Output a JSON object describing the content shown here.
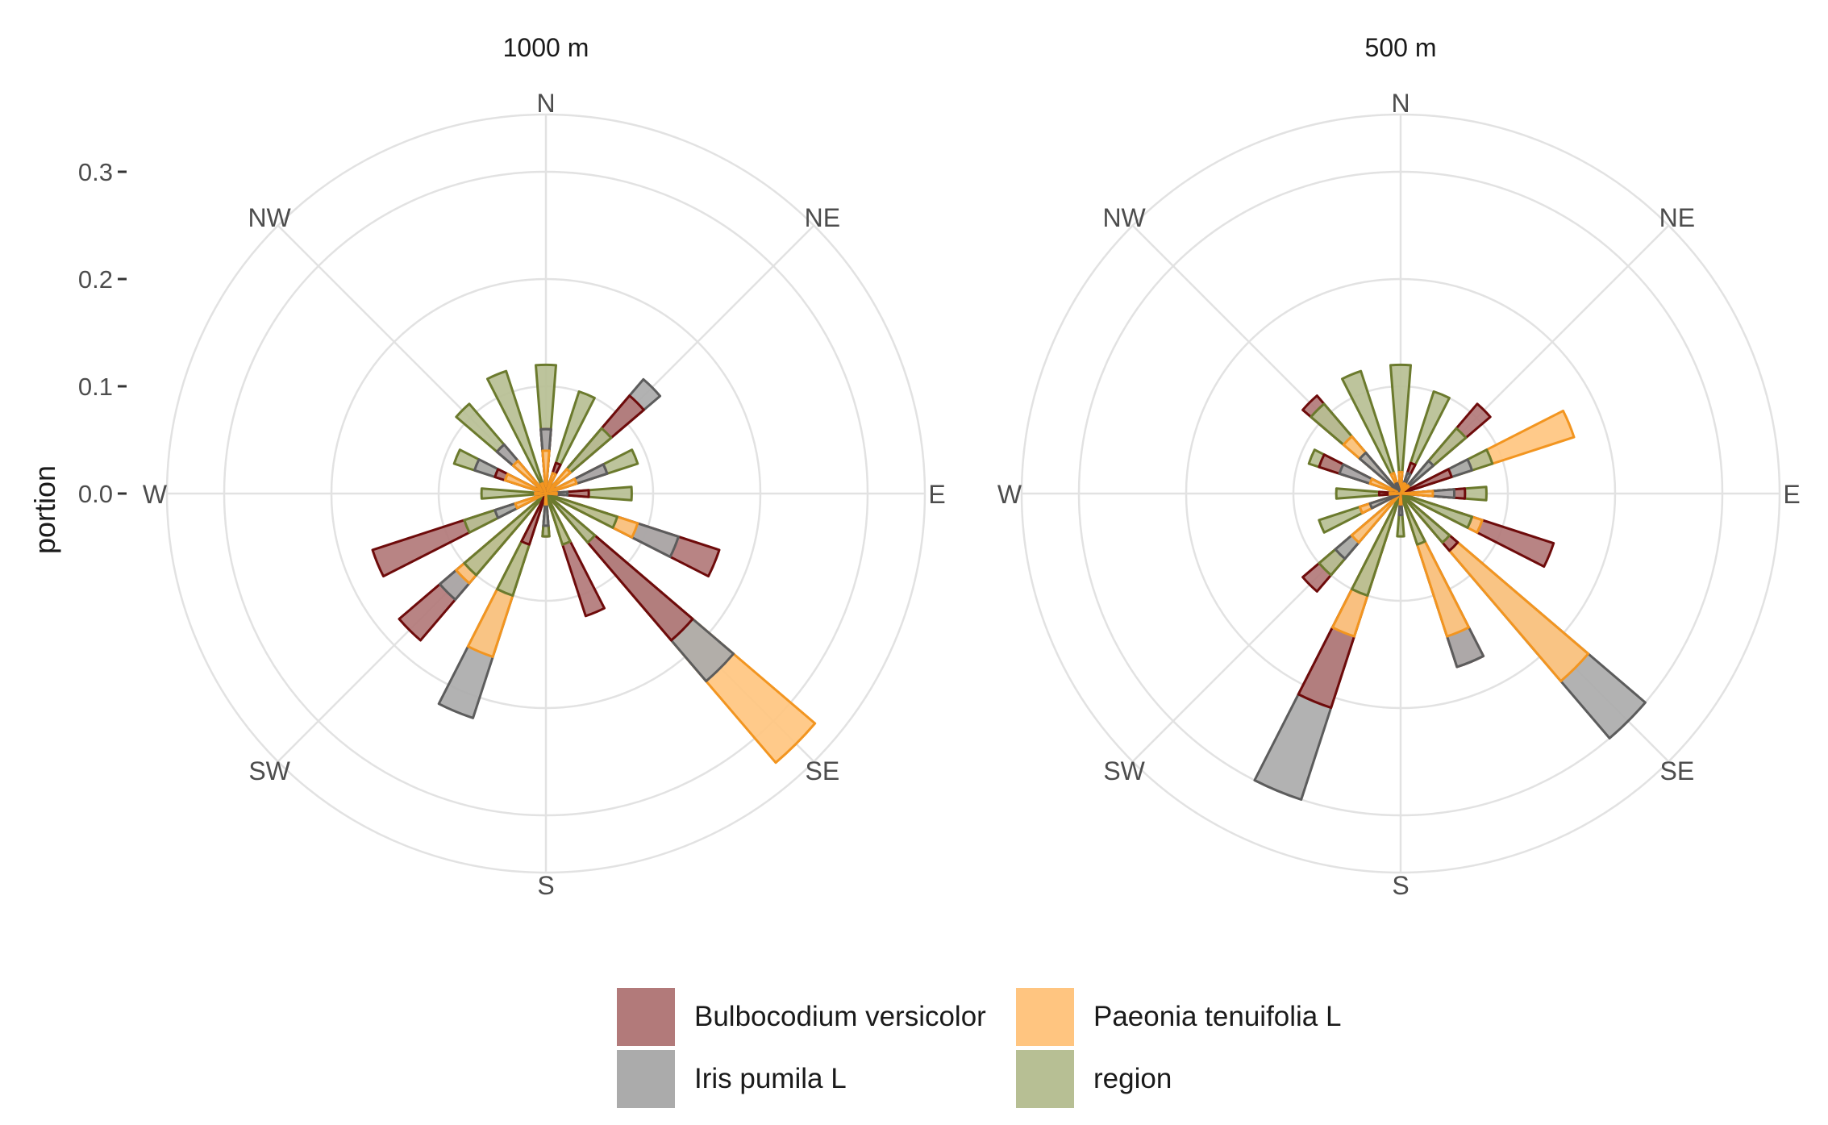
{
  "chart_data": {
    "type": "rose",
    "ylabel": "portion",
    "radial_ticks": [
      "0.0",
      "0.1",
      "0.2",
      "0.3"
    ],
    "directions": [
      "N",
      "NE",
      "E",
      "SE",
      "S",
      "SW",
      "W",
      "NW"
    ],
    "bin_count": 16,
    "series_styles": [
      {
        "name": "Bulbocodium versicolor",
        "fill": "#B27A7A",
        "stroke": "#6E0B0B"
      },
      {
        "name": "Iris pumila L",
        "fill": "#ABABAB",
        "stroke": "#5C5C5C"
      },
      {
        "name": "Paeonia tenuifolia L",
        "fill": "#FFC580",
        "stroke": "#F29520"
      },
      {
        "name": "region",
        "fill": "#B7BF94",
        "stroke": "#6B7A2D"
      }
    ],
    "panels": [
      {
        "title": "1000 m",
        "series": [
          {
            "name": "Bulbocodium versicolor",
            "values": [
              0.06,
              0.03,
              0.12,
              0.06,
              0.04,
              0.17,
              0.18,
              0.12,
              0.04,
              0.05,
              0.18,
              0.17,
              0.01,
              0.05,
              0.06,
              0.01
            ]
          },
          {
            "name": "Iris pumila L",
            "values": [
              0.06,
              0.02,
              0.14,
              0.06,
              0.02,
              0.13,
              0.23,
              0.05,
              0.03,
              0.22,
              0.13,
              0.05,
              0.01,
              0.07,
              0.06,
              0.01
            ]
          },
          {
            "name": "Paeonia tenuifolia L",
            "values": [
              0.04,
              0.02,
              0.03,
              0.03,
              0.01,
              0.09,
              0.33,
              0.05,
              0.01,
              0.16,
              0.11,
              0.03,
              0.01,
              0.04,
              0.04,
              0.01
            ]
          },
          {
            "name": "region",
            "values": [
              0.12,
              0.1,
              0.08,
              0.09,
              0.08,
              0.07,
              0.06,
              0.05,
              0.04,
              0.1,
              0.1,
              0.08,
              0.06,
              0.09,
              0.11,
              0.12
            ]
          }
        ]
      },
      {
        "title": "500 m",
        "series": [
          {
            "name": "Bulbocodium versicolor",
            "values": [
              0.02,
              0.03,
              0.11,
              0.05,
              0.06,
              0.15,
              0.07,
              0.17,
              0.01,
              0.21,
              0.12,
              0.04,
              0.02,
              0.08,
              0.12,
              0.01
            ]
          },
          {
            "name": "Iris pumila L",
            "values": [
              0.02,
              0.02,
              0.04,
              0.07,
              0.05,
              0.07,
              0.3,
              0.17,
              0.02,
              0.3,
              0.08,
              0.03,
              0.01,
              0.06,
              0.05,
              0.01
            ]
          },
          {
            "name": "Paeonia tenuifolia L",
            "values": [
              0.02,
              0.01,
              0.01,
              0.17,
              0.03,
              0.08,
              0.23,
              0.14,
              0.01,
              0.14,
              0.06,
              0.04,
              0.01,
              0.03,
              0.07,
              0.02
            ]
          },
          {
            "name": "region",
            "values": [
              0.12,
              0.1,
              0.08,
              0.09,
              0.08,
              0.07,
              0.06,
              0.05,
              0.04,
              0.1,
              0.1,
              0.08,
              0.06,
              0.09,
              0.11,
              0.12
            ]
          }
        ]
      }
    ],
    "legend": {
      "position": "bottom",
      "entries": [
        "Bulbocodium versicolor",
        "Paeonia tenuifolia L",
        "Iris pumila L",
        "region"
      ]
    }
  }
}
